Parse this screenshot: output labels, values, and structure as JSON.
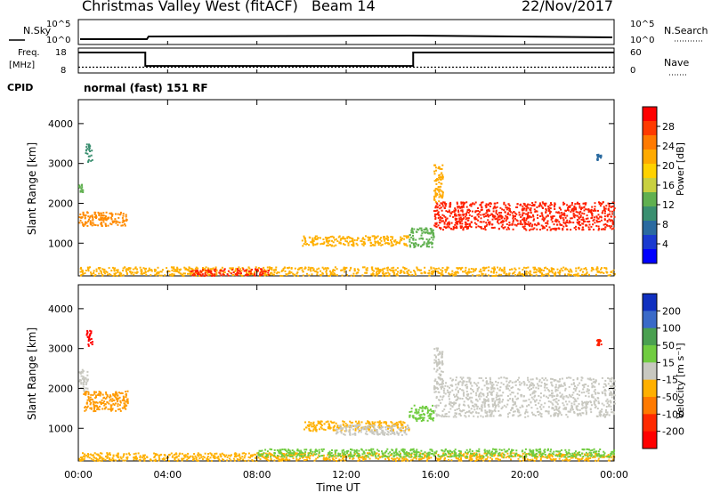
{
  "header": {
    "title": "Christmas Valley West (fitACF)",
    "beam": "Beam 14",
    "date": "22/Nov/2017"
  },
  "sky_panel": {
    "left_label": "N.Sky",
    "left_ticks": [
      "10^5",
      "10^0"
    ],
    "right_label": "N.Search",
    "right_ticks": [
      "10^5",
      "10^0"
    ]
  },
  "freq_panel": {
    "left_label_1": "Freq.",
    "left_label_2": "[MHz]",
    "left_ticks": [
      "18",
      "8"
    ],
    "right_label": "Nave",
    "right_ticks": [
      "60",
      "0"
    ],
    "freq_steps": [
      {
        "start": 0,
        "end": 3,
        "value": 16.2
      },
      {
        "start": 3,
        "end": 15,
        "value": 10.8
      },
      {
        "start": 15,
        "end": 24,
        "value": 16.2
      }
    ],
    "nave_steps": [
      {
        "start": 0,
        "end": 3,
        "value": 14
      },
      {
        "start": 3,
        "end": 24,
        "value": 14
      }
    ]
  },
  "cpid": {
    "label": "CPID",
    "text": "normal (fast) 151 RF"
  },
  "x_axis": {
    "label": "Time UT",
    "range_hours": [
      0,
      24
    ],
    "ticks": [
      "00:00",
      "04:00",
      "08:00",
      "12:00",
      "16:00",
      "20:00",
      "00:00"
    ]
  },
  "power_panel": {
    "ylabel": "Slant Range [km]",
    "yticks": [
      "1000",
      "2000",
      "3000",
      "4000"
    ],
    "colorbar_label": "Power [dB]",
    "colorbar_ticks": [
      "28",
      "24",
      "20",
      "16",
      "12",
      "8",
      "4"
    ],
    "colorbar_colors": [
      "#ff0000",
      "#ff3a00",
      "#ff7a00",
      "#ffaa00",
      "#ffd200",
      "#c8d040",
      "#60b050",
      "#3a8f70",
      "#2a6aa0",
      "#1a3ad0",
      "#0000ff"
    ]
  },
  "velocity_panel": {
    "ylabel": "Slant Range [km]",
    "yticks": [
      "1000",
      "2000",
      "3000",
      "4000"
    ],
    "colorbar_label": "Velocity [m s⁻¹]",
    "colorbar_ticks": [
      "200",
      "100",
      "50",
      "15",
      "-15",
      "-50",
      "-100",
      "-200"
    ],
    "colorbar_colors": [
      "#1030c0",
      "#3a6ac8",
      "#4aa050",
      "#70cc40",
      "#c8c8c0",
      "#ffb000",
      "#ff7a00",
      "#ff2a00",
      "#ff0000"
    ]
  },
  "chart_data": {
    "type": "heatmap",
    "x_unit": "hours UT",
    "y_unit": "km",
    "ylim": [
      180,
      4600
    ],
    "power_regions": [
      {
        "t0": 0.0,
        "t1": 2.2,
        "r0": 1450,
        "r1": 1800,
        "color": "#ff8a00"
      },
      {
        "t0": 0.3,
        "t1": 0.6,
        "r0": 3050,
        "r1": 3500,
        "color": "#3a8f70"
      },
      {
        "t0": 0.0,
        "t1": 0.2,
        "r0": 2300,
        "r1": 2500,
        "color": "#60b050"
      },
      {
        "t0": 10.0,
        "t1": 14.8,
        "r0": 950,
        "r1": 1200,
        "color": "#ffb000"
      },
      {
        "t0": 14.8,
        "t1": 15.9,
        "r0": 900,
        "r1": 1400,
        "color": "#60b050"
      },
      {
        "t0": 15.9,
        "t1": 24.0,
        "r0": 1350,
        "r1": 2050,
        "color": "#ff2000"
      },
      {
        "t0": 15.9,
        "t1": 16.3,
        "r0": 2000,
        "r1": 3000,
        "color": "#ffaa00"
      },
      {
        "t0": 0.0,
        "t1": 24.0,
        "r0": 200,
        "r1": 420,
        "color": "#ffb000"
      },
      {
        "t0": 5.0,
        "t1": 8.5,
        "r0": 200,
        "r1": 380,
        "color": "#ff2000"
      },
      {
        "t0": 23.2,
        "t1": 23.4,
        "r0": 3100,
        "r1": 3250,
        "color": "#2a6aa0"
      }
    ],
    "velocity_regions": [
      {
        "t0": 0.0,
        "t1": 0.4,
        "r0": 1900,
        "r1": 2500,
        "color": "#c8c8c0"
      },
      {
        "t0": 0.2,
        "t1": 2.2,
        "r0": 1450,
        "r1": 1950,
        "color": "#ff9a00"
      },
      {
        "t0": 0.3,
        "t1": 0.6,
        "r0": 3050,
        "r1": 3500,
        "color": "#ff0000"
      },
      {
        "t0": 10.0,
        "t1": 14.8,
        "r0": 950,
        "r1": 1200,
        "color": "#ffb000"
      },
      {
        "t0": 11.5,
        "t1": 14.8,
        "r0": 850,
        "r1": 1100,
        "color": "#c8c8c0"
      },
      {
        "t0": 14.8,
        "t1": 15.9,
        "r0": 1200,
        "r1": 1600,
        "color": "#70cc40"
      },
      {
        "t0": 15.9,
        "t1": 24.0,
        "r0": 1300,
        "r1": 2300,
        "color": "#c8c8c0"
      },
      {
        "t0": 15.9,
        "t1": 16.3,
        "r0": 2000,
        "r1": 3050,
        "color": "#c8c8c0"
      },
      {
        "t0": 0.0,
        "t1": 24.0,
        "r0": 200,
        "r1": 400,
        "color": "#ffb000"
      },
      {
        "t0": 8.0,
        "t1": 24.0,
        "r0": 300,
        "r1": 500,
        "color": "#70cc40"
      },
      {
        "t0": 23.2,
        "t1": 23.4,
        "r0": 3100,
        "r1": 3250,
        "color": "#ff2000"
      }
    ]
  }
}
